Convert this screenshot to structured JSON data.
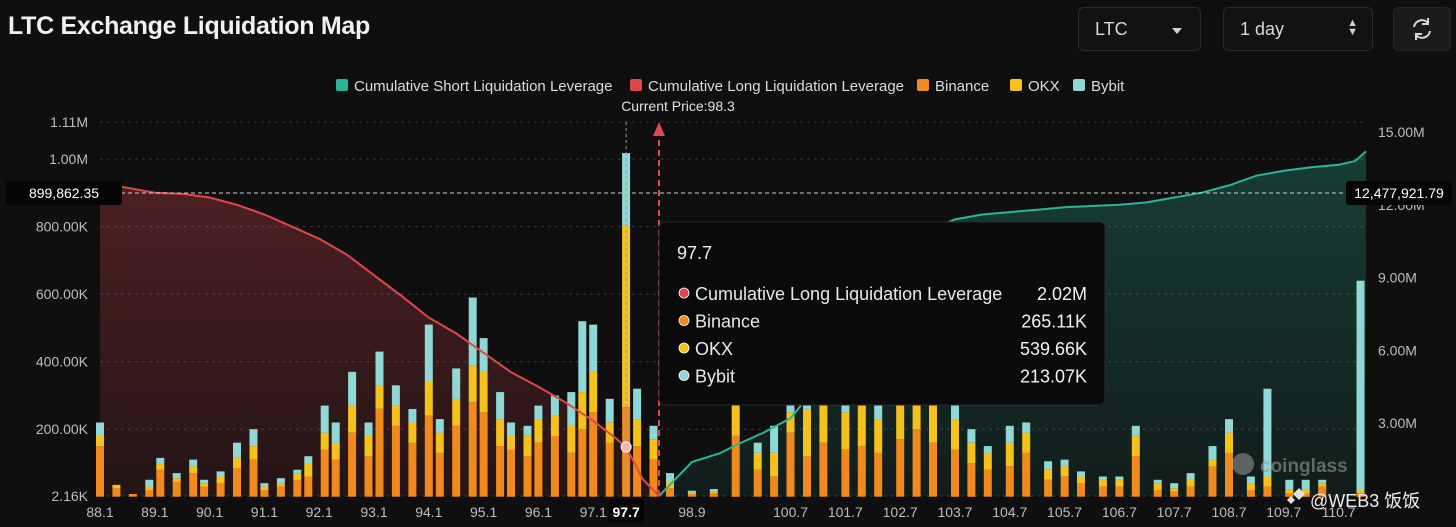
{
  "header": {
    "title": "LTC Exchange Liquidation Map",
    "coin_select": "LTC",
    "range_select": "1 day",
    "refresh_icon": "refresh-icon"
  },
  "colors": {
    "short_line": "#2bb596",
    "long_line": "#e0474c",
    "binance": "#f08a1e",
    "okx": "#f5c21b",
    "bybit": "#8fd8d6"
  },
  "watermark": {
    "logo": "coinglass",
    "credit": "@WEB3 饭饭"
  },
  "chart_data": {
    "type": "bar",
    "title": "LTC Exchange Liquidation Map",
    "legend": [
      "Cumulative Short Liquidation Leverage",
      "Cumulative Long Liquidation Leverage",
      "Binance",
      "OKX",
      "Bybit"
    ],
    "legend_position": "top-center",
    "current_price_label": "Current Price:98.3",
    "current_price": 98.3,
    "x_ticks": [
      "88.1",
      "89.1",
      "90.1",
      "91.1",
      "92.1",
      "93.1",
      "94.1",
      "95.1",
      "96.1",
      "97.1",
      "97.7",
      "98.9",
      "100.7",
      "101.7",
      "102.7",
      "103.7",
      "104.7",
      "105.7",
      "106.7",
      "107.7",
      "108.7",
      "109.7",
      "110.7"
    ],
    "highlight_tick": "97.7",
    "y_left_ticks": [
      "1.11M",
      "1.00M",
      "800.00K",
      "600.00K",
      "400.00K",
      "200.00K",
      "2.16K"
    ],
    "y_left_range": [
      2160,
      1110000
    ],
    "y_right_ticks": [
      "15.00M",
      "12.00M",
      "9.00M",
      "6.00M",
      "3.00M"
    ],
    "y_right_range": [
      0,
      15000000
    ],
    "cursor_left_value": "899,862.35",
    "cursor_right_value": "12,477,921.79",
    "x_range": [
      88.1,
      111.2
    ],
    "bars": [
      {
        "x": 88.1,
        "binance": 150,
        "okx": 30,
        "bybit": 40
      },
      {
        "x": 88.4,
        "binance": 25,
        "okx": 10,
        "bybit": 0
      },
      {
        "x": 88.7,
        "binance": 8,
        "okx": 0,
        "bybit": 0
      },
      {
        "x": 89.0,
        "binance": 20,
        "okx": 10,
        "bybit": 20
      },
      {
        "x": 89.2,
        "binance": 80,
        "okx": 20,
        "bybit": 15
      },
      {
        "x": 89.5,
        "binance": 45,
        "okx": 10,
        "bybit": 15
      },
      {
        "x": 89.8,
        "binance": 70,
        "okx": 20,
        "bybit": 20
      },
      {
        "x": 90.0,
        "binance": 30,
        "okx": 10,
        "bybit": 10
      },
      {
        "x": 90.3,
        "binance": 40,
        "okx": 20,
        "bybit": 15
      },
      {
        "x": 90.6,
        "binance": 85,
        "okx": 30,
        "bybit": 45
      },
      {
        "x": 90.9,
        "binance": 110,
        "okx": 40,
        "bybit": 50
      },
      {
        "x": 91.1,
        "binance": 20,
        "okx": 10,
        "bybit": 10
      },
      {
        "x": 91.4,
        "binance": 30,
        "okx": 10,
        "bybit": 15
      },
      {
        "x": 91.7,
        "binance": 50,
        "okx": 20,
        "bybit": 10
      },
      {
        "x": 91.9,
        "binance": 60,
        "okx": 40,
        "bybit": 20
      },
      {
        "x": 92.2,
        "binance": 140,
        "okx": 50,
        "bybit": 80
      },
      {
        "x": 92.4,
        "binance": 110,
        "okx": 50,
        "bybit": 60
      },
      {
        "x": 92.7,
        "binance": 190,
        "okx": 80,
        "bybit": 100
      },
      {
        "x": 93.0,
        "binance": 120,
        "okx": 60,
        "bybit": 40
      },
      {
        "x": 93.2,
        "binance": 260,
        "okx": 70,
        "bybit": 100
      },
      {
        "x": 93.5,
        "binance": 210,
        "okx": 60,
        "bybit": 60
      },
      {
        "x": 93.8,
        "binance": 160,
        "okx": 60,
        "bybit": 40
      },
      {
        "x": 94.1,
        "binance": 240,
        "okx": 100,
        "bybit": 170
      },
      {
        "x": 94.3,
        "binance": 130,
        "okx": 60,
        "bybit": 40
      },
      {
        "x": 94.6,
        "binance": 210,
        "okx": 80,
        "bybit": 90
      },
      {
        "x": 94.9,
        "binance": 280,
        "okx": 110,
        "bybit": 200
      },
      {
        "x": 95.1,
        "binance": 250,
        "okx": 120,
        "bybit": 100
      },
      {
        "x": 95.4,
        "binance": 150,
        "okx": 80,
        "bybit": 80
      },
      {
        "x": 95.6,
        "binance": 140,
        "okx": 40,
        "bybit": 40
      },
      {
        "x": 95.9,
        "binance": 120,
        "okx": 60,
        "bybit": 30
      },
      {
        "x": 96.1,
        "binance": 160,
        "okx": 70,
        "bybit": 40
      },
      {
        "x": 96.4,
        "binance": 180,
        "okx": 60,
        "bybit": 60
      },
      {
        "x": 96.7,
        "binance": 130,
        "okx": 80,
        "bybit": 100
      },
      {
        "x": 96.9,
        "binance": 200,
        "okx": 110,
        "bybit": 210
      },
      {
        "x": 97.1,
        "binance": 250,
        "okx": 120,
        "bybit": 140
      },
      {
        "x": 97.4,
        "binance": 160,
        "okx": 60,
        "bybit": 70
      },
      {
        "x": 97.7,
        "binance": 265.11,
        "okx": 539.66,
        "bybit": 213.07
      },
      {
        "x": 97.9,
        "binance": 150,
        "okx": 80,
        "bybit": 90
      },
      {
        "x": 98.2,
        "binance": 110,
        "okx": 60,
        "bybit": 40
      },
      {
        "x": 98.5,
        "binance": 25,
        "okx": 20,
        "bybit": 25
      },
      {
        "x": 98.9,
        "binance": 8,
        "okx": 5,
        "bybit": 5
      },
      {
        "x": 99.3,
        "binance": 10,
        "okx": 5,
        "bybit": 8
      },
      {
        "x": 99.7,
        "binance": 180,
        "okx": 440,
        "bybit": 120
      },
      {
        "x": 100.1,
        "binance": 80,
        "okx": 50,
        "bybit": 30
      },
      {
        "x": 100.4,
        "binance": 60,
        "okx": 70,
        "bybit": 80
      },
      {
        "x": 100.7,
        "binance": 190,
        "okx": 60,
        "bybit": 80
      },
      {
        "x": 101.0,
        "binance": 120,
        "okx": 140,
        "bybit": 80
      },
      {
        "x": 101.3,
        "binance": 160,
        "okx": 120,
        "bybit": 100
      },
      {
        "x": 101.7,
        "binance": 140,
        "okx": 110,
        "bybit": 80
      },
      {
        "x": 102.0,
        "binance": 150,
        "okx": 120,
        "bybit": 90
      },
      {
        "x": 102.3,
        "binance": 130,
        "okx": 100,
        "bybit": 60
      },
      {
        "x": 102.7,
        "binance": 170,
        "okx": 110,
        "bybit": 100
      },
      {
        "x": 103.0,
        "binance": 200,
        "okx": 130,
        "bybit": 80
      },
      {
        "x": 103.3,
        "binance": 160,
        "okx": 120,
        "bybit": 60
      },
      {
        "x": 103.7,
        "binance": 140,
        "okx": 90,
        "bybit": 50
      },
      {
        "x": 104.0,
        "binance": 100,
        "okx": 60,
        "bybit": 40
      },
      {
        "x": 104.3,
        "binance": 80,
        "okx": 50,
        "bybit": 20
      },
      {
        "x": 104.7,
        "binance": 90,
        "okx": 70,
        "bybit": 50
      },
      {
        "x": 105.0,
        "binance": 130,
        "okx": 60,
        "bybit": 30
      },
      {
        "x": 105.4,
        "binance": 50,
        "okx": 30,
        "bybit": 25
      },
      {
        "x": 105.7,
        "binance": 60,
        "okx": 30,
        "bybit": 20
      },
      {
        "x": 106.0,
        "binance": 40,
        "okx": 20,
        "bybit": 15
      },
      {
        "x": 106.4,
        "binance": 30,
        "okx": 20,
        "bybit": 10
      },
      {
        "x": 106.7,
        "binance": 30,
        "okx": 20,
        "bybit": 10
      },
      {
        "x": 107.0,
        "binance": 120,
        "okx": 60,
        "bybit": 30
      },
      {
        "x": 107.4,
        "binance": 20,
        "okx": 20,
        "bybit": 10
      },
      {
        "x": 107.7,
        "binance": 15,
        "okx": 10,
        "bybit": 15
      },
      {
        "x": 108.0,
        "binance": 30,
        "okx": 20,
        "bybit": 20
      },
      {
        "x": 108.4,
        "binance": 90,
        "okx": 20,
        "bybit": 40
      },
      {
        "x": 108.7,
        "binance": 130,
        "okx": 60,
        "bybit": 40
      },
      {
        "x": 109.1,
        "binance": 20,
        "okx": 20,
        "bybit": 20
      },
      {
        "x": 109.4,
        "binance": 30,
        "okx": 30,
        "bybit": 260
      },
      {
        "x": 109.8,
        "binance": 10,
        "okx": 10,
        "bybit": 30
      },
      {
        "x": 110.1,
        "binance": 10,
        "okx": 10,
        "bybit": 30
      },
      {
        "x": 110.4,
        "binance": 30,
        "okx": 10,
        "bybit": 10
      },
      {
        "x": 111.1,
        "binance": 10,
        "okx": 10,
        "bybit": 620
      }
    ],
    "long_line": [
      [
        88.1,
        12.9
      ],
      [
        88.6,
        12.7
      ],
      [
        89.1,
        12.5
      ],
      [
        89.6,
        12.45
      ],
      [
        90.1,
        12.3
      ],
      [
        90.6,
        12.0
      ],
      [
        91.1,
        11.6
      ],
      [
        91.6,
        11.1
      ],
      [
        92.1,
        10.6
      ],
      [
        92.6,
        9.95
      ],
      [
        93.1,
        9.1
      ],
      [
        93.6,
        8.25
      ],
      [
        94.1,
        7.35
      ],
      [
        94.6,
        6.7
      ],
      [
        95.1,
        5.9
      ],
      [
        95.6,
        5.1
      ],
      [
        96.1,
        4.5
      ],
      [
        96.6,
        3.85
      ],
      [
        97.1,
        3.1
      ],
      [
        97.5,
        2.4
      ],
      [
        97.7,
        2.02
      ],
      [
        98.0,
        0.7
      ],
      [
        98.3,
        0.0
      ]
    ],
    "short_line": [
      [
        98.3,
        0.0
      ],
      [
        98.6,
        0.7
      ],
      [
        98.9,
        1.4
      ],
      [
        99.4,
        1.75
      ],
      [
        99.8,
        2.2
      ],
      [
        100.2,
        2.6
      ],
      [
        100.7,
        3.2
      ],
      [
        101.2,
        4.6
      ],
      [
        101.7,
        6.8
      ],
      [
        102.2,
        8.8
      ],
      [
        102.7,
        10.1
      ],
      [
        103.2,
        10.9
      ],
      [
        103.7,
        11.4
      ],
      [
        104.2,
        11.6
      ],
      [
        104.7,
        11.7
      ],
      [
        105.2,
        11.8
      ],
      [
        105.7,
        11.9
      ],
      [
        106.2,
        11.95
      ],
      [
        106.7,
        12.0
      ],
      [
        107.2,
        12.1
      ],
      [
        107.7,
        12.3
      ],
      [
        108.2,
        12.5
      ],
      [
        108.7,
        12.8
      ],
      [
        109.2,
        13.2
      ],
      [
        109.7,
        13.4
      ],
      [
        110.2,
        13.55
      ],
      [
        110.7,
        13.65
      ],
      [
        111.0,
        13.8
      ],
      [
        111.2,
        14.2
      ]
    ],
    "tooltip": {
      "title": "97.7",
      "rows": [
        {
          "label": "Cumulative Long Liquidation Leverage",
          "value": "2.02M",
          "key": "long"
        },
        {
          "label": "Binance",
          "value": "265.11K",
          "key": "binance"
        },
        {
          "label": "OKX",
          "value": "539.66K",
          "key": "okx"
        },
        {
          "label": "Bybit",
          "value": "213.07K",
          "key": "bybit"
        }
      ]
    }
  }
}
